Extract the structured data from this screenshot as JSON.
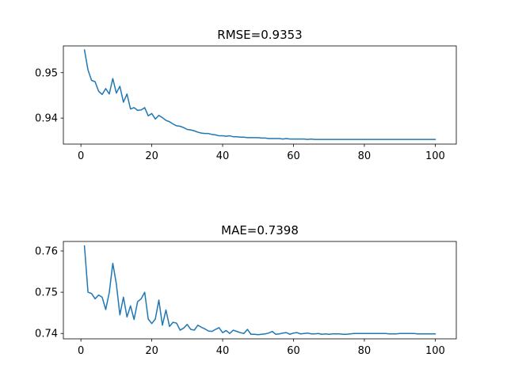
{
  "chart_data": [
    {
      "type": "line",
      "title": "RMSE=0.9353",
      "xlim": [
        -4.95,
        105.95
      ],
      "ylim": [
        0.93428,
        0.95588
      ],
      "xticks": [
        0,
        20,
        40,
        60,
        80,
        100
      ],
      "yticks": [
        0.94,
        0.95
      ],
      "ytick_labels": [
        "0.94",
        "0.95"
      ],
      "color": "#1f77b4",
      "series": [
        {
          "x": [
            1,
            2,
            3,
            4,
            5,
            6,
            7,
            8,
            9,
            10,
            11,
            12,
            13,
            14,
            15,
            16,
            17,
            18,
            19,
            20,
            21,
            22,
            23,
            24,
            25,
            26,
            27,
            28,
            29,
            30,
            31,
            32,
            33,
            34,
            35,
            36,
            37,
            38,
            39,
            40,
            41,
            42,
            43,
            44,
            45,
            46,
            47,
            48,
            49,
            50,
            51,
            52,
            53,
            54,
            55,
            56,
            57,
            58,
            59,
            60,
            61,
            62,
            63,
            64,
            65,
            66,
            67,
            68,
            69,
            70,
            71,
            72,
            73,
            74,
            75,
            76,
            77,
            78,
            79,
            80,
            81,
            82,
            83,
            84,
            85,
            86,
            87,
            88,
            89,
            90,
            91,
            92,
            93,
            94,
            95,
            96,
            97,
            98,
            99,
            100
          ],
          "values": [
            0.955,
            0.9506,
            0.9483,
            0.948,
            0.9459,
            0.9452,
            0.9465,
            0.9453,
            0.9487,
            0.9455,
            0.947,
            0.9435,
            0.9453,
            0.942,
            0.9423,
            0.9417,
            0.9418,
            0.9423,
            0.9405,
            0.941,
            0.9398,
            0.9406,
            0.9401,
            0.9395,
            0.9392,
            0.9387,
            0.9383,
            0.9382,
            0.9379,
            0.9375,
            0.9374,
            0.9372,
            0.9369,
            0.9367,
            0.9366,
            0.9366,
            0.9364,
            0.9363,
            0.9361,
            0.9361,
            0.936,
            0.9361,
            0.9359,
            0.9359,
            0.9358,
            0.9358,
            0.9357,
            0.9357,
            0.9357,
            0.9357,
            0.9356,
            0.9356,
            0.9355,
            0.9355,
            0.9355,
            0.9355,
            0.9354,
            0.9355,
            0.9354,
            0.9354,
            0.9354,
            0.9354,
            0.9354,
            0.9353,
            0.9354,
            0.9353,
            0.9353,
            0.9353,
            0.9353,
            0.9353,
            0.9353,
            0.9353,
            0.9353,
            0.9353,
            0.9353,
            0.9353,
            0.9353,
            0.9353,
            0.9353,
            0.9353,
            0.9353,
            0.9353,
            0.9353,
            0.9353,
            0.9353,
            0.9353,
            0.9353,
            0.9353,
            0.9353,
            0.9353,
            0.9353,
            0.9353,
            0.9353,
            0.9353,
            0.9353,
            0.9353,
            0.9353,
            0.9353,
            0.9353,
            0.9353
          ]
        }
      ]
    },
    {
      "type": "line",
      "title": "MAE=0.7398",
      "xlim": [
        -4.95,
        105.95
      ],
      "ylim": [
        0.7387,
        0.7623
      ],
      "xticks": [
        0,
        20,
        40,
        60,
        80,
        100
      ],
      "yticks": [
        0.74,
        0.75,
        0.76
      ],
      "ytick_labels": [
        "0.74",
        "0.75",
        "0.76"
      ],
      "color": "#1f77b4",
      "series": [
        {
          "x": [
            1,
            2,
            3,
            4,
            5,
            6,
            7,
            8,
            9,
            10,
            11,
            12,
            13,
            14,
            15,
            16,
            17,
            18,
            19,
            20,
            21,
            22,
            23,
            24,
            25,
            26,
            27,
            28,
            29,
            30,
            31,
            32,
            33,
            34,
            35,
            36,
            37,
            38,
            39,
            40,
            41,
            42,
            43,
            44,
            45,
            46,
            47,
            48,
            49,
            50,
            51,
            52,
            53,
            54,
            55,
            56,
            57,
            58,
            59,
            60,
            61,
            62,
            63,
            64,
            65,
            66,
            67,
            68,
            69,
            70,
            71,
            72,
            73,
            74,
            75,
            76,
            77,
            78,
            79,
            80,
            81,
            82,
            83,
            84,
            85,
            86,
            87,
            88,
            89,
            90,
            91,
            92,
            93,
            94,
            95,
            96,
            97,
            98,
            99,
            100
          ],
          "values": [
            0.7612,
            0.75,
            0.7497,
            0.7484,
            0.7493,
            0.7488,
            0.7458,
            0.7499,
            0.757,
            0.752,
            0.7445,
            0.7488,
            0.744,
            0.7467,
            0.7434,
            0.7477,
            0.7484,
            0.75,
            0.7435,
            0.7424,
            0.7435,
            0.7481,
            0.742,
            0.7457,
            0.7417,
            0.7427,
            0.7425,
            0.7408,
            0.7413,
            0.7422,
            0.741,
            0.7408,
            0.742,
            0.7415,
            0.7411,
            0.7406,
            0.7405,
            0.741,
            0.7414,
            0.7402,
            0.7407,
            0.74,
            0.7408,
            0.7405,
            0.7402,
            0.74,
            0.741,
            0.7398,
            0.7398,
            0.7397,
            0.7398,
            0.7399,
            0.7401,
            0.7405,
            0.7398,
            0.7399,
            0.7401,
            0.7402,
            0.7398,
            0.7401,
            0.7402,
            0.7399,
            0.74,
            0.7401,
            0.7399,
            0.7399,
            0.74,
            0.7398,
            0.7399,
            0.7398,
            0.7399,
            0.7399,
            0.7399,
            0.7398,
            0.7398,
            0.7399,
            0.74,
            0.74,
            0.74,
            0.74,
            0.74,
            0.74,
            0.74,
            0.74,
            0.74,
            0.74,
            0.7399,
            0.7399,
            0.7399,
            0.74,
            0.74,
            0.74,
            0.74,
            0.74,
            0.7399,
            0.7399,
            0.7399,
            0.7399,
            0.7399,
            0.7399
          ]
        }
      ]
    }
  ]
}
